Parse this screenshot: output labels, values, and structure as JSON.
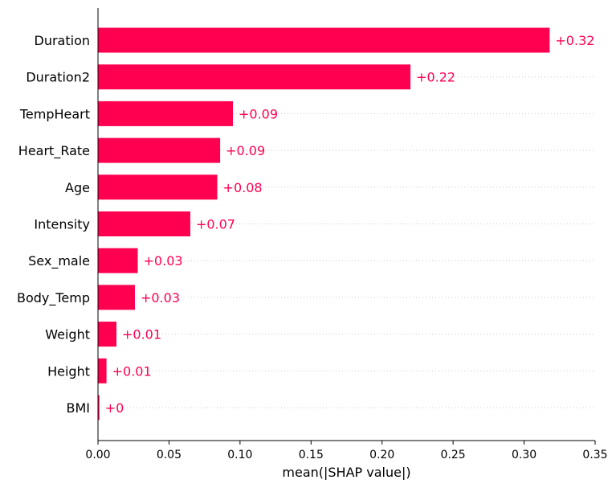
{
  "chart_data": {
    "type": "bar",
    "orientation": "horizontal",
    "categories": [
      "Duration",
      "Duration2",
      "TempHeart",
      "Heart_Rate",
      "Age",
      "Intensity",
      "Sex_male",
      "Body_Temp",
      "Weight",
      "Height",
      "BMI"
    ],
    "values": [
      0.318,
      0.22,
      0.095,
      0.086,
      0.084,
      0.065,
      0.028,
      0.026,
      0.013,
      0.006,
      0.001
    ],
    "data_labels": [
      "+0.32",
      "+0.22",
      "+0.09",
      "+0.09",
      "+0.08",
      "+0.07",
      "+0.03",
      "+0.03",
      "+0.01",
      "+0.01",
      "+0"
    ],
    "xlabel": "mean(|SHAP value|)",
    "xlim": [
      0,
      0.35
    ],
    "xticks": [
      "0.00",
      "0.05",
      "0.10",
      "0.15",
      "0.20",
      "0.25",
      "0.30",
      "0.35"
    ],
    "grid": "dotted horizontal guide lines per row",
    "colors": {
      "bar": "#ff0051",
      "label": "#ff0051",
      "axis": "#000000",
      "grid": "#cccccc"
    }
  }
}
